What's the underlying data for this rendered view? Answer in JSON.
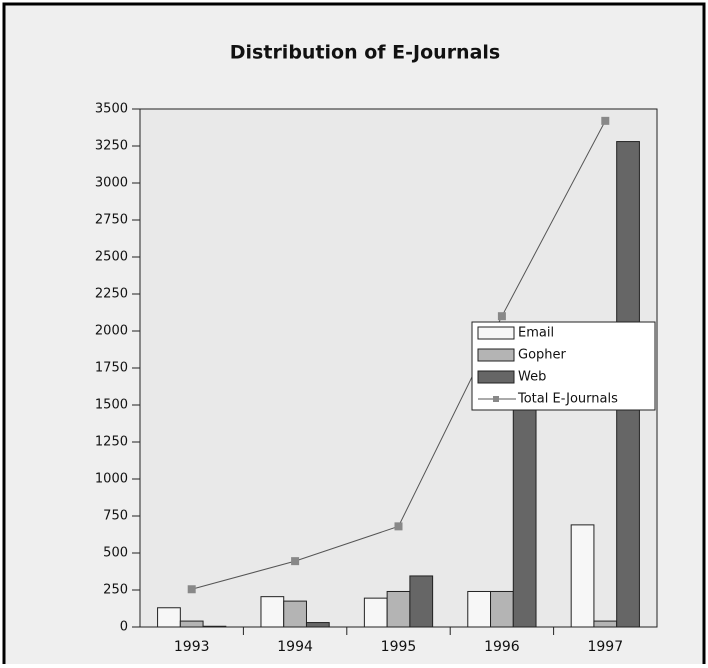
{
  "chart_data": {
    "type": "bar",
    "title": "Distribution of E-Journals",
    "categories": [
      "1993",
      "1994",
      "1995",
      "1996",
      "1997"
    ],
    "series": [
      {
        "name": "Email",
        "color": "#f7f7f7",
        "values": [
          130,
          205,
          195,
          240,
          690
        ]
      },
      {
        "name": "Gopher",
        "color": "#b4b4b4",
        "values": [
          40,
          175,
          240,
          240,
          40
        ]
      },
      {
        "name": "Web",
        "color": "#666666",
        "values": [
          5,
          30,
          345,
          1600,
          3280
        ]
      },
      {
        "name": "Total E-Journals",
        "type": "line",
        "color": "#555555",
        "values": [
          255,
          445,
          680,
          2100,
          3420
        ]
      }
    ],
    "ylim": [
      0,
      3500
    ],
    "yticks": [
      0,
      250,
      500,
      750,
      1000,
      1250,
      1500,
      1750,
      2000,
      2250,
      2500,
      2750,
      3000,
      3250,
      3500
    ],
    "legend": "right"
  }
}
